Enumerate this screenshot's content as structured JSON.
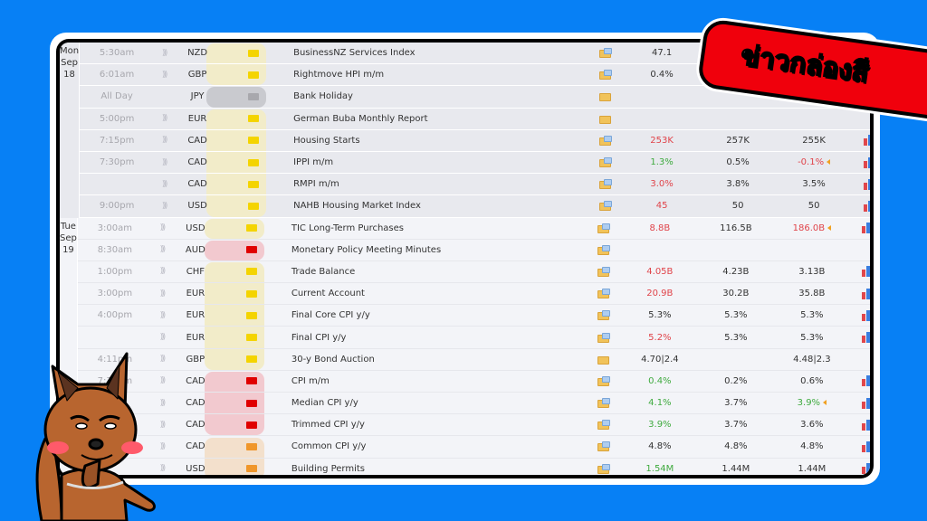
{
  "banner": {
    "text": "ข่าวกล่องสี",
    "color": "#f0000c"
  },
  "colors": {
    "background": "#0780f5",
    "better": "#3faa3f",
    "worse": "#e0444a"
  },
  "days": [
    {
      "day": "Mon",
      "date": "Sep 18",
      "events": [
        {
          "time": "5:30am",
          "currency": "NZD",
          "impact": "yellow",
          "event": "BusinessNZ Services Index",
          "actual": "47.1",
          "actual_color": "neutral",
          "forecast": "",
          "previous": "",
          "detail_icon": "folder-doc-icon",
          "graph": false,
          "sound": true
        },
        {
          "time": "6:01am",
          "currency": "GBP",
          "impact": "yellow",
          "event": "Rightmove HPI m/m",
          "actual": "0.4%",
          "actual_color": "neutral",
          "forecast": "",
          "previous": "",
          "detail_icon": "folder-doc-icon",
          "graph": false,
          "sound": true
        },
        {
          "time": "All Day",
          "currency": "JPY",
          "impact": "gray",
          "event": "Bank Holiday",
          "actual": "",
          "forecast": "",
          "previous": "",
          "detail_icon": "folder-icon",
          "graph": false,
          "sound": false
        },
        {
          "time": "5:00pm",
          "currency": "EUR",
          "impact": "yellow",
          "event": "German Buba Monthly Report",
          "actual": "",
          "forecast": "",
          "previous": "",
          "detail_icon": "folder-icon",
          "graph": false,
          "sound": true
        },
        {
          "time": "7:15pm",
          "currency": "CAD",
          "impact": "yellow",
          "event": "Housing Starts",
          "actual": "253K",
          "actual_color": "worse",
          "forecast": "257K",
          "previous": "255K",
          "detail_icon": "folder-doc-icon",
          "graph": true,
          "sound": true
        },
        {
          "time": "7:30pm",
          "currency": "CAD",
          "impact": "yellow",
          "event": "IPPI m/m",
          "actual": "1.3%",
          "actual_color": "better",
          "forecast": "0.5%",
          "previous": "-0.1%",
          "previous_color": "worse",
          "revised": true,
          "detail_icon": "folder-doc-icon",
          "graph": true,
          "sound": true
        },
        {
          "time": "",
          "currency": "CAD",
          "impact": "yellow",
          "event": "RMPI m/m",
          "actual": "3.0%",
          "actual_color": "worse",
          "forecast": "3.8%",
          "previous": "3.5%",
          "detail_icon": "folder-doc-icon",
          "graph": true,
          "sound": true
        },
        {
          "time": "9:00pm",
          "currency": "USD",
          "impact": "yellow",
          "event": "NAHB Housing Market Index",
          "actual": "45",
          "actual_color": "worse",
          "forecast": "50",
          "previous": "50",
          "detail_icon": "folder-doc-icon",
          "graph": true,
          "sound": true
        }
      ]
    },
    {
      "day": "Tue",
      "date": "Sep 19",
      "events": [
        {
          "time": "3:00am",
          "currency": "USD",
          "impact": "yellow",
          "event": "TIC Long-Term Purchases",
          "actual": "8.8B",
          "actual_color": "worse",
          "forecast": "116.5B",
          "previous": "186.0B",
          "previous_color": "worse",
          "revised": true,
          "detail_icon": "folder-doc-icon",
          "graph": true,
          "sound": true
        },
        {
          "time": "8:30am",
          "currency": "AUD",
          "impact": "red",
          "event": "Monetary Policy Meeting Minutes",
          "actual": "",
          "forecast": "",
          "previous": "",
          "detail_icon": "folder-doc-icon",
          "graph": false,
          "sound": true
        },
        {
          "time": "1:00pm",
          "currency": "CHF",
          "impact": "yellow",
          "event": "Trade Balance",
          "actual": "4.05B",
          "actual_color": "worse",
          "forecast": "4.23B",
          "previous": "3.13B",
          "detail_icon": "folder-doc-icon",
          "graph": true,
          "sound": true
        },
        {
          "time": "3:00pm",
          "currency": "EUR",
          "impact": "yellow",
          "event": "Current Account",
          "actual": "20.9B",
          "actual_color": "worse",
          "forecast": "30.2B",
          "previous": "35.8B",
          "detail_icon": "folder-doc-icon",
          "graph": true,
          "sound": true
        },
        {
          "time": "4:00pm",
          "currency": "EUR",
          "impact": "yellow",
          "event": "Final Core CPI y/y",
          "actual": "5.3%",
          "actual_color": "neutral",
          "forecast": "5.3%",
          "previous": "5.3%",
          "detail_icon": "folder-doc-icon",
          "graph": true,
          "sound": true
        },
        {
          "time": "",
          "currency": "EUR",
          "impact": "yellow",
          "event": "Final CPI y/y",
          "actual": "5.2%",
          "actual_color": "worse",
          "forecast": "5.3%",
          "previous": "5.3%",
          "detail_icon": "folder-doc-icon",
          "graph": true,
          "sound": true
        },
        {
          "time": "4:11pm",
          "currency": "GBP",
          "impact": "yellow",
          "event": "30-y Bond Auction",
          "actual": "4.70|2.4",
          "actual_color": "neutral",
          "forecast": "",
          "previous": "4.48|2.3",
          "detail_icon": "folder-icon",
          "graph": false,
          "sound": true
        },
        {
          "time": "7:30pm",
          "currency": "CAD",
          "impact": "red",
          "event": "CPI m/m",
          "actual": "0.4%",
          "actual_color": "better",
          "forecast": "0.2%",
          "previous": "0.6%",
          "detail_icon": "folder-doc-icon",
          "graph": true,
          "sound": true
        },
        {
          "time": "",
          "currency": "CAD",
          "impact": "red",
          "event": "Median CPI y/y",
          "actual": "4.1%",
          "actual_color": "better",
          "forecast": "3.7%",
          "previous": "3.9%",
          "previous_color": "better",
          "revised": true,
          "detail_icon": "folder-doc-icon",
          "graph": true,
          "sound": true
        },
        {
          "time": "",
          "currency": "CAD",
          "impact": "red",
          "event": "Trimmed CPI y/y",
          "actual": "3.9%",
          "actual_color": "better",
          "forecast": "3.7%",
          "previous": "3.6%",
          "detail_icon": "folder-doc-icon",
          "graph": true,
          "sound": true
        },
        {
          "time": "",
          "currency": "CAD",
          "impact": "orange",
          "event": "Common CPI y/y",
          "actual": "4.8%",
          "actual_color": "neutral",
          "forecast": "4.8%",
          "previous": "4.8%",
          "detail_icon": "folder-doc-icon",
          "graph": true,
          "sound": true
        },
        {
          "time": "",
          "currency": "USD",
          "impact": "orange",
          "event": "Building Permits",
          "actual": "1.54M",
          "actual_color": "better",
          "forecast": "1.44M",
          "previous": "1.44M",
          "detail_icon": "folder-doc-icon",
          "graph": true,
          "sound": true
        }
      ]
    }
  ],
  "impact_colors": {
    "yellow": "#f4d400",
    "gray": "#a8a8ad",
    "red": "#e00000",
    "orange": "#f0962a"
  },
  "impact_bg": {
    "yellow": "#f2ecc9",
    "gray": "#c9cacf",
    "red": "#f2c9cf",
    "orange": "#f3e0cc"
  }
}
